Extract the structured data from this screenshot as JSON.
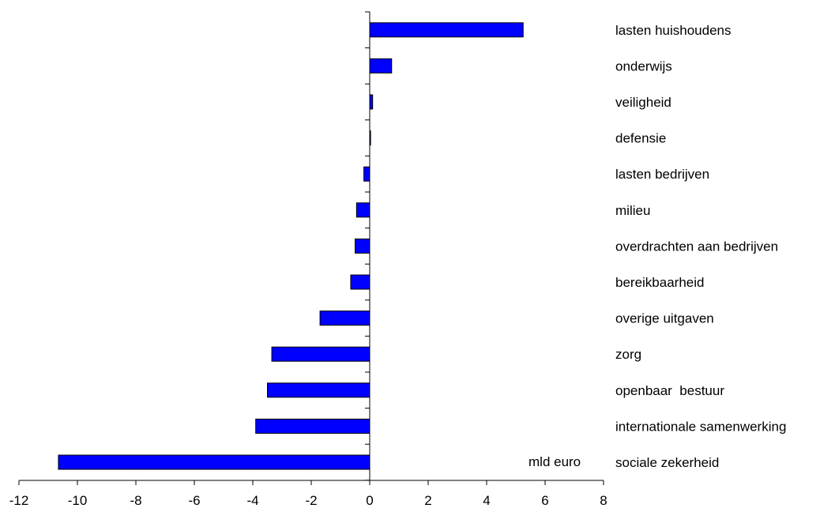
{
  "chart_data": {
    "type": "bar",
    "orientation": "horizontal",
    "categories": [
      "lasten huishoudens",
      "onderwijs",
      "veiligheid",
      "defensie",
      "lasten bedrijven",
      "milieu",
      "overdrachten aan bedrijven",
      "bereikbaarheid",
      "overige uitgaven",
      "zorg",
      "openbaar  bestuur",
      "internationale samenwerking",
      "sociale zekerheid"
    ],
    "values": [
      5.25,
      0.75,
      0.1,
      0.03,
      -0.2,
      -0.45,
      -0.5,
      -0.65,
      -1.7,
      -3.35,
      -3.5,
      -3.9,
      -10.65
    ],
    "xlim": [
      -12,
      8
    ],
    "xticks": [
      "-12",
      "-10",
      "-8",
      "-6",
      "-4",
      "-2",
      "0",
      "2",
      "4",
      "6",
      "8"
    ],
    "unit_label": "mld euro",
    "bar_color": "#0000ff",
    "bar_stroke": "#000000",
    "grid": false,
    "legend": "none"
  }
}
